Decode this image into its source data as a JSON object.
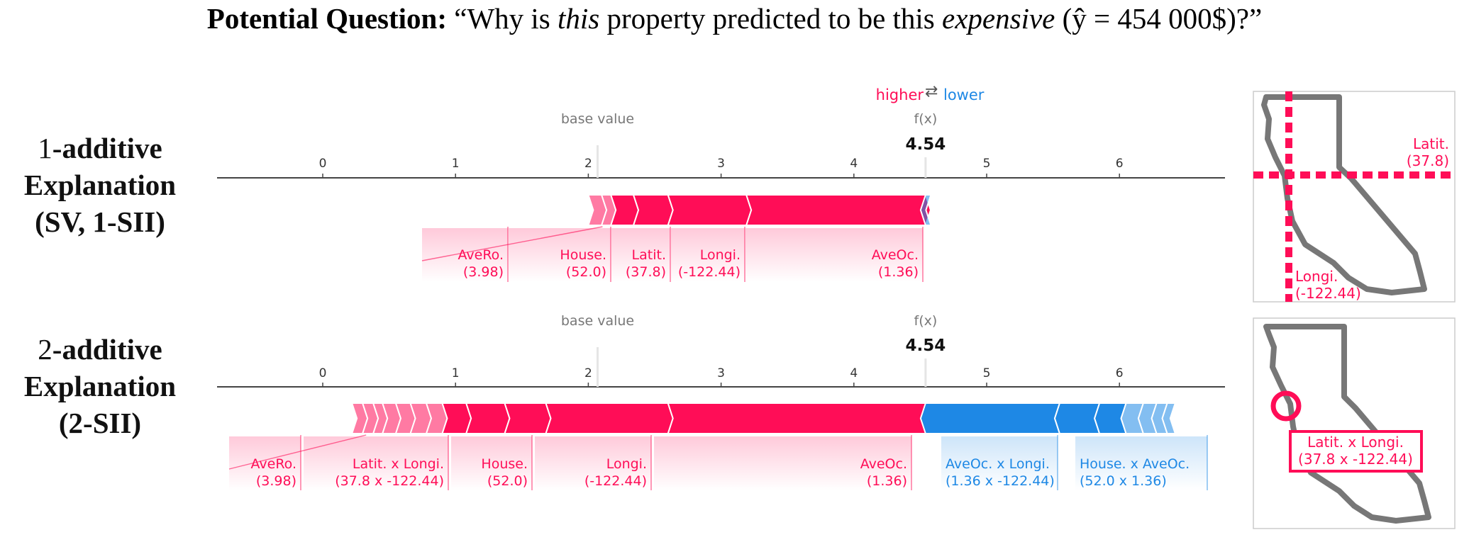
{
  "title": {
    "prefix": "Potential Question:",
    "open_quote": "“Why is ",
    "em1": "this",
    "mid": " property predicted to be this ",
    "em2": "expensive",
    "paren": " (ŷ = 454 000$)?”"
  },
  "rows": [
    {
      "lead": "1",
      "line1": "-additive",
      "line2": "Explanation",
      "line3": "(SV, 1-SII)"
    },
    {
      "lead": "2",
      "line1": "-additive",
      "line2": "Explanation",
      "line3": "(2-SII)"
    }
  ],
  "legend": {
    "higher": "higher",
    "arrows": "⇄",
    "lower": "lower"
  },
  "colors": {
    "positive": "#ff0d57",
    "negative": "#1e88e5",
    "axis": "#444444",
    "label_gray": "#777777",
    "map_outline": "#777777"
  },
  "plots": [
    {
      "base_label": "base value",
      "fx_label": "f(x)",
      "fx_value": "4.54",
      "base_value": 2.07,
      "fx": 4.54,
      "ticks": [
        "0",
        "1",
        "2",
        "3",
        "4",
        "5",
        "6"
      ],
      "pos_segments": [
        [
          2.0,
          2.1
        ],
        [
          2.1,
          2.17
        ],
        [
          2.17,
          2.34
        ],
        [
          2.34,
          2.6
        ],
        [
          2.6,
          3.19
        ],
        [
          3.19,
          4.54
        ]
      ],
      "neg_segments": [
        [
          4.54,
          4.58
        ]
      ],
      "labels": [
        {
          "name": "AveRo.",
          "value": "(3.98)",
          "color": "pos",
          "seg": 2
        },
        {
          "name": "House.",
          "value": "(52.0)",
          "color": "pos",
          "seg": 3
        },
        {
          "name": "Latit.",
          "value": "(37.8)",
          "color": "pos",
          "seg": 4
        },
        {
          "name": "Longi.",
          "value": "(-122.44)",
          "color": "pos",
          "seg": 5
        },
        {
          "name": "AveOc.",
          "value": "(1.36)",
          "color": "pos",
          "seg": 6
        }
      ]
    },
    {
      "base_label": "base value",
      "fx_label": "f(x)",
      "fx_value": "4.54",
      "base_value": 2.07,
      "fx": 4.54,
      "ticks": [
        "0",
        "1",
        "2",
        "3",
        "4",
        "5",
        "6"
      ],
      "pos_segments": [
        [
          0.22,
          0.3
        ],
        [
          0.3,
          0.38
        ],
        [
          0.38,
          0.45
        ],
        [
          0.45,
          0.55
        ],
        [
          0.55,
          0.66
        ],
        [
          0.66,
          0.78
        ],
        [
          0.78,
          0.9
        ],
        [
          0.9,
          1.08
        ],
        [
          1.08,
          1.37
        ],
        [
          1.37,
          1.68
        ],
        [
          1.68,
          2.6
        ],
        [
          2.6,
          4.54
        ]
      ],
      "neg_segments": [
        [
          4.54,
          5.55
        ],
        [
          5.55,
          5.85
        ],
        [
          5.85,
          6.05
        ],
        [
          6.05,
          6.18
        ],
        [
          6.18,
          6.28
        ],
        [
          6.28,
          6.36
        ],
        [
          6.36,
          6.42
        ]
      ],
      "labels": [
        {
          "name": "AveRo.",
          "value": "(3.98)",
          "color": "pos"
        },
        {
          "name": "Latit. x Longi.",
          "value": "(37.8 x -122.44)",
          "color": "pos"
        },
        {
          "name": "House.",
          "value": "(52.0)",
          "color": "pos"
        },
        {
          "name": "Longi.",
          "value": "(-122.44)",
          "color": "pos"
        },
        {
          "name": "AveOc.",
          "value": "(1.36)",
          "color": "pos"
        },
        {
          "name": "AveOc. x Longi.",
          "value": "(1.36 x -122.44)",
          "color": "neg"
        },
        {
          "name": "House. x AveOc.",
          "value": "(52.0 x 1.36)",
          "color": "neg"
        }
      ]
    }
  ],
  "map1": {
    "lat_label": "Latit.",
    "lat_value": "(37.8)",
    "lon_label": "Longi.",
    "lon_value": "(-122.44)"
  },
  "map2": {
    "label": "Latit. x Longi.",
    "value": "(37.8 x -122.44)"
  }
}
